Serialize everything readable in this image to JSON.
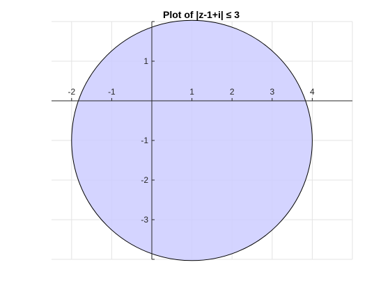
{
  "chart_data": {
    "type": "region",
    "title": "Plot of |z-1+i| ≤ 3",
    "xlabel": "",
    "ylabel": "",
    "xlim": [
      -2.5,
      5.0
    ],
    "ylim": [
      -4.0,
      2.0
    ],
    "grid": true,
    "axis_location": "origin",
    "region": {
      "shape": "disk",
      "center": [
        1,
        -1
      ],
      "radius": 3,
      "fill_color": "#ccccff",
      "edge_color": "#000000"
    },
    "x_ticks": [
      {
        "value": -2,
        "label": "-2"
      },
      {
        "value": -1,
        "label": "-1"
      },
      {
        "value": 1,
        "label": "1"
      },
      {
        "value": 2,
        "label": "2"
      },
      {
        "value": 3,
        "label": "3"
      },
      {
        "value": 4,
        "label": "4"
      }
    ],
    "y_ticks": [
      {
        "value": 1,
        "label": "1"
      },
      {
        "value": -1,
        "label": "-1"
      },
      {
        "value": -2,
        "label": "-2"
      },
      {
        "value": -3,
        "label": "-3"
      }
    ]
  }
}
